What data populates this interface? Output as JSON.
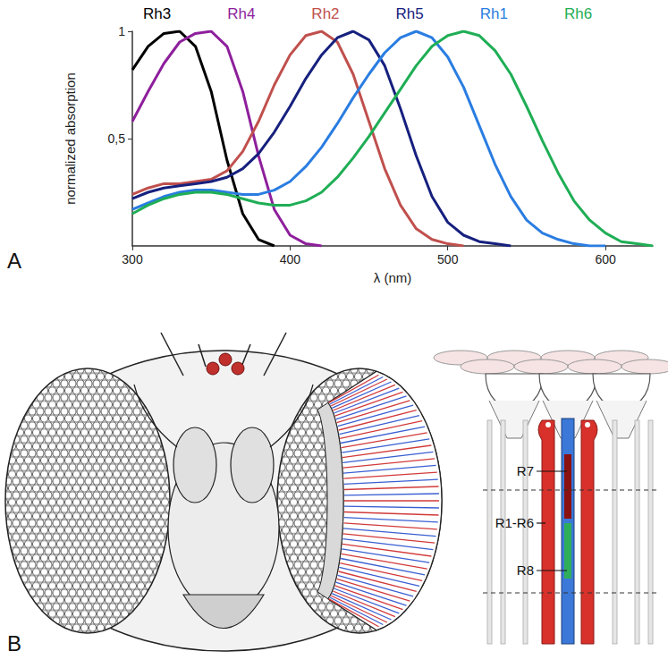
{
  "panel_labels": [
    "A",
    "B"
  ],
  "chart_data": {
    "type": "line",
    "x_label": "λ (nm)",
    "y_label": "normalized absorption",
    "x": [
      300,
      310,
      320,
      330,
      340,
      350,
      360,
      370,
      380,
      390,
      400,
      410,
      420,
      430,
      440,
      450,
      460,
      470,
      480,
      490,
      500,
      510,
      520,
      530,
      540,
      550,
      560,
      570,
      580,
      590,
      600,
      610,
      620,
      630
    ],
    "series": [
      {
        "name": "Rh3",
        "color": "#000000",
        "values": [
          0.82,
          0.93,
          0.99,
          1.0,
          0.93,
          0.72,
          0.4,
          0.15,
          0.03,
          0.0,
          null,
          null,
          null,
          null,
          null,
          null,
          null,
          null,
          null,
          null,
          null,
          null,
          null,
          null,
          null,
          null,
          null,
          null,
          null,
          null,
          null,
          null,
          null,
          null
        ]
      },
      {
        "name": "Rh4",
        "color": "#8e1f9c",
        "values": [
          0.58,
          0.72,
          0.85,
          0.95,
          0.99,
          1.0,
          0.93,
          0.72,
          0.42,
          0.17,
          0.05,
          0.01,
          0.0,
          null,
          null,
          null,
          null,
          null,
          null,
          null,
          null,
          null,
          null,
          null,
          null,
          null,
          null,
          null,
          null,
          null,
          null,
          null,
          null,
          null
        ]
      },
      {
        "name": "Rh2",
        "color": "#c0504d",
        "values": [
          0.24,
          0.27,
          0.29,
          0.29,
          0.3,
          0.31,
          0.35,
          0.44,
          0.58,
          0.75,
          0.89,
          0.98,
          1.0,
          0.95,
          0.8,
          0.58,
          0.36,
          0.19,
          0.08,
          0.03,
          0.01,
          0.0,
          null,
          null,
          null,
          null,
          null,
          null,
          null,
          null,
          null,
          null,
          null,
          null
        ]
      },
      {
        "name": "Rh5",
        "color": "#16207e",
        "values": [
          0.22,
          0.25,
          0.27,
          0.28,
          0.29,
          0.3,
          0.32,
          0.36,
          0.43,
          0.53,
          0.65,
          0.78,
          0.89,
          0.97,
          1.0,
          0.96,
          0.84,
          0.64,
          0.42,
          0.23,
          0.11,
          0.05,
          0.02,
          0.01,
          0.0,
          null,
          null,
          null,
          null,
          null,
          null,
          null,
          null,
          null
        ]
      },
      {
        "name": "Rh1",
        "color": "#2a7de1",
        "values": [
          0.17,
          0.2,
          0.23,
          0.25,
          0.26,
          0.26,
          0.25,
          0.24,
          0.24,
          0.26,
          0.3,
          0.37,
          0.46,
          0.57,
          0.69,
          0.8,
          0.9,
          0.97,
          1.0,
          0.97,
          0.88,
          0.74,
          0.56,
          0.38,
          0.23,
          0.12,
          0.06,
          0.03,
          0.01,
          0.0,
          0.0,
          null,
          null,
          null
        ]
      },
      {
        "name": "Rh6",
        "color": "#1fae55",
        "values": [
          0.15,
          0.19,
          0.22,
          0.24,
          0.25,
          0.25,
          0.24,
          0.22,
          0.2,
          0.19,
          0.19,
          0.21,
          0.25,
          0.32,
          0.41,
          0.51,
          0.62,
          0.73,
          0.84,
          0.93,
          0.98,
          1.0,
          0.98,
          0.91,
          0.8,
          0.65,
          0.49,
          0.34,
          0.21,
          0.12,
          0.06,
          0.02,
          0.01,
          0.0
        ]
      }
    ],
    "xlim": [
      300,
      630
    ],
    "xticks": [
      300,
      400,
      500,
      600
    ],
    "ylim": [
      0,
      1
    ],
    "yticks": [
      {
        "value": 0.5,
        "label": "0,5"
      },
      1
    ],
    "grid": false,
    "legend": "top"
  },
  "diagram": {
    "labels": [
      "R7",
      "R1-R6",
      "R8"
    ]
  }
}
